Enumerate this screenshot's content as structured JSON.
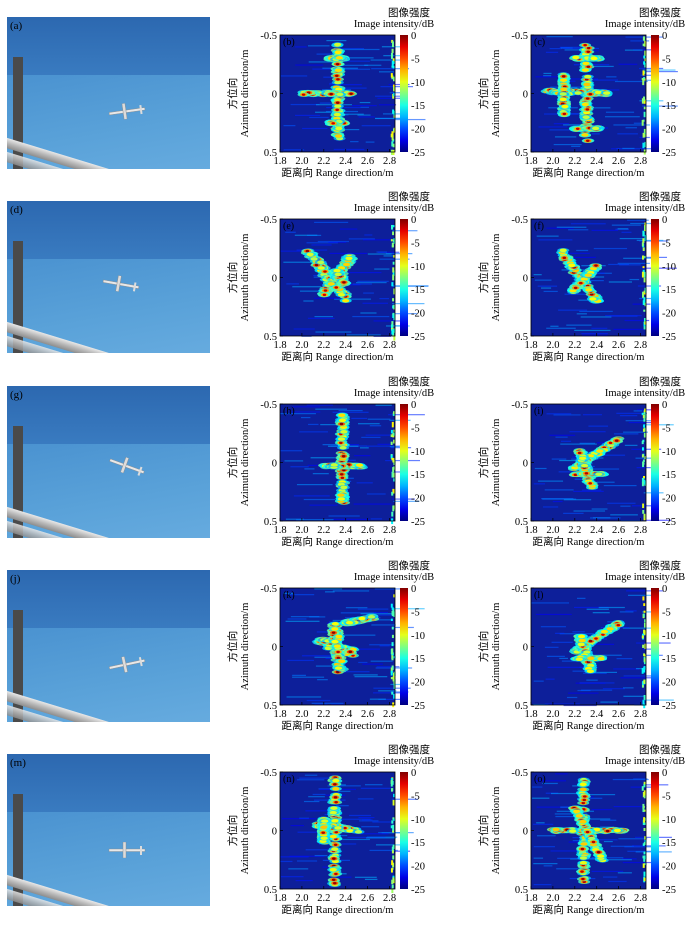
{
  "figure": {
    "colorbar_title_cn": "图像强度",
    "colorbar_title_en": "Image intensity/dB",
    "colorbar_ticks": [
      "0",
      "-5",
      "-10",
      "-15",
      "-20",
      "-25"
    ],
    "ylabel_cn": "方位向",
    "ylabel_en": "Azimuth direction/m",
    "xlabel": "距离向 Range direction/m",
    "x_ticks": [
      "1.8",
      "2.0",
      "2.2",
      "2.4",
      "2.6",
      "2.8"
    ],
    "y_ticks": [
      "-0.5",
      "0",
      "0.5"
    ]
  },
  "rows": [
    {
      "photo_label": "(a)",
      "panels": [
        "(b)",
        "(c)"
      ]
    },
    {
      "photo_label": "(d)",
      "panels": [
        "(e)",
        "(f)"
      ]
    },
    {
      "photo_label": "(g)",
      "panels": [
        "(h)",
        "(i)"
      ]
    },
    {
      "photo_label": "(j)",
      "panels": [
        "(k)",
        "(l)"
      ]
    },
    {
      "photo_label": "(m)",
      "panels": [
        "(n)",
        "(o)"
      ]
    }
  ],
  "chart_data": [
    {
      "type": "heatmap",
      "panel": "(b)",
      "xlim": [
        1.8,
        2.85
      ],
      "ylim": [
        -0.5,
        0.5
      ],
      "clim": [
        -25,
        0
      ]
    },
    {
      "type": "heatmap",
      "panel": "(c)",
      "xlim": [
        1.8,
        2.85
      ],
      "ylim": [
        -0.5,
        0.5
      ],
      "clim": [
        -25,
        0
      ]
    },
    {
      "type": "heatmap",
      "panel": "(e)",
      "xlim": [
        1.8,
        2.85
      ],
      "ylim": [
        -0.5,
        0.5
      ],
      "clim": [
        -25,
        0
      ]
    },
    {
      "type": "heatmap",
      "panel": "(f)",
      "xlim": [
        1.8,
        2.85
      ],
      "ylim": [
        -0.5,
        0.5
      ],
      "clim": [
        -25,
        0
      ]
    },
    {
      "type": "heatmap",
      "panel": "(h)",
      "xlim": [
        1.8,
        2.85
      ],
      "ylim": [
        -0.5,
        0.5
      ],
      "clim": [
        -25,
        0
      ]
    },
    {
      "type": "heatmap",
      "panel": "(i)",
      "xlim": [
        1.8,
        2.85
      ],
      "ylim": [
        -0.5,
        0.5
      ],
      "clim": [
        -25,
        0
      ]
    },
    {
      "type": "heatmap",
      "panel": "(k)",
      "xlim": [
        1.8,
        2.85
      ],
      "ylim": [
        -0.5,
        0.5
      ],
      "clim": [
        -25,
        0
      ]
    },
    {
      "type": "heatmap",
      "panel": "(l)",
      "xlim": [
        1.8,
        2.85
      ],
      "ylim": [
        -0.5,
        0.5
      ],
      "clim": [
        -25,
        0
      ]
    },
    {
      "type": "heatmap",
      "panel": "(n)",
      "xlim": [
        1.8,
        2.85
      ],
      "ylim": [
        -0.5,
        0.5
      ],
      "clim": [
        -25,
        0
      ]
    },
    {
      "type": "heatmap",
      "panel": "(o)",
      "xlim": [
        1.8,
        2.85
      ],
      "ylim": [
        -0.5,
        0.5
      ],
      "clim": [
        -25,
        0
      ]
    }
  ]
}
